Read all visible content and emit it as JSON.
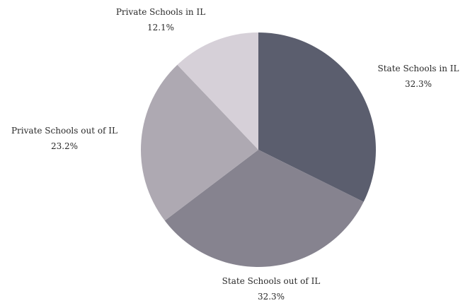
{
  "chart_data": {
    "type": "pie",
    "slices": [
      {
        "label": "State Schools in IL",
        "value_text": "32.3%",
        "value": 32.3,
        "color": "#5b5e6e"
      },
      {
        "label": "State Schools out of IL",
        "value_text": "32.3%",
        "value": 32.3,
        "color": "#86838f"
      },
      {
        "label": "Private Schools out of IL",
        "value_text": "23.2%",
        "value": 23.2,
        "color": "#aea9b2"
      },
      {
        "label": "Private Schools in IL",
        "value_text": "12.1%",
        "value": 12.1,
        "color": "#d6d0d8"
      }
    ],
    "start_angle": "12 o'clock, clockwise",
    "legend": "none (labels outside slices)"
  }
}
